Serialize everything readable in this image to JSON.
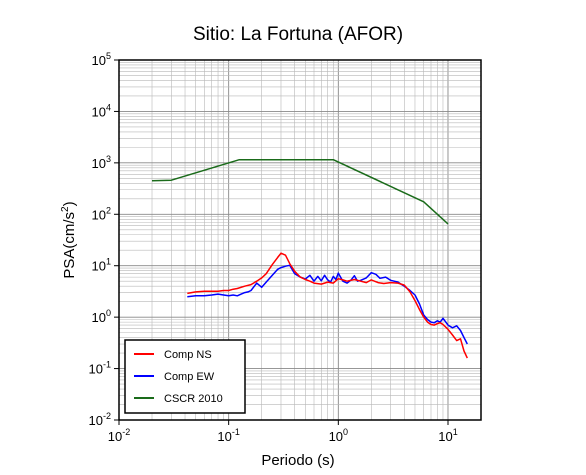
{
  "chart_data": {
    "type": "line",
    "title": "Sitio: La Fortuna (AFOR)",
    "xlabel": "Periodo (s)",
    "ylabel_main": "PSA(cm/s",
    "ylabel_sup": "2",
    "ylabel_end": ")",
    "xscale": "log",
    "yscale": "log",
    "xlim": [
      0.01,
      20
    ],
    "ylim": [
      0.01,
      100000
    ],
    "grid": true,
    "x_ticks": [
      {
        "base": "10",
        "exp": "-2",
        "value": 0.01
      },
      {
        "base": "10",
        "exp": "-1",
        "value": 0.1
      },
      {
        "base": "10",
        "exp": "0",
        "value": 1
      },
      {
        "base": "10",
        "exp": "1",
        "value": 10
      }
    ],
    "y_ticks": [
      {
        "base": "10",
        "exp": "-2",
        "value": 0.01
      },
      {
        "base": "10",
        "exp": "-1",
        "value": 0.1
      },
      {
        "base": "10",
        "exp": "0",
        "value": 1
      },
      {
        "base": "10",
        "exp": "1",
        "value": 10
      },
      {
        "base": "10",
        "exp": "2",
        "value": 100
      },
      {
        "base": "10",
        "exp": "3",
        "value": 1000
      },
      {
        "base": "10",
        "exp": "4",
        "value": 10000
      },
      {
        "base": "10",
        "exp": "5",
        "value": 100000
      }
    ],
    "legend_position": "bottom-left",
    "series": [
      {
        "name": "Comp NS",
        "color": "#ff0000",
        "x": [
          0.042,
          0.05,
          0.06,
          0.07,
          0.08,
          0.09,
          0.1,
          0.11,
          0.12,
          0.14,
          0.16,
          0.18,
          0.2,
          0.22,
          0.25,
          0.28,
          0.3,
          0.33,
          0.36,
          0.4,
          0.45,
          0.5,
          0.55,
          0.6,
          0.7,
          0.8,
          0.9,
          1.0,
          1.1,
          1.2,
          1.4,
          1.6,
          1.8,
          2.0,
          2.3,
          2.6,
          3.0,
          3.5,
          4.0,
          4.5,
          5.0,
          5.5,
          6.0,
          6.5,
          7.0,
          7.5,
          8.0,
          8.5,
          9.0,
          10.0,
          11.0,
          12.0,
          13.0,
          14.0,
          15.0
        ],
        "y": [
          2.9,
          3.1,
          3.2,
          3.2,
          3.2,
          3.3,
          3.3,
          3.5,
          3.6,
          4.0,
          4.3,
          5.0,
          5.8,
          7.0,
          10.5,
          14.5,
          17.5,
          16.0,
          11.0,
          7.8,
          6.0,
          5.4,
          5.0,
          4.6,
          4.4,
          4.8,
          4.6,
          5.6,
          5.3,
          5.0,
          5.4,
          5.0,
          4.7,
          5.3,
          4.7,
          4.5,
          4.7,
          4.6,
          4.2,
          3.1,
          2.1,
          1.4,
          1.0,
          0.8,
          0.72,
          0.7,
          0.75,
          0.78,
          0.72,
          0.58,
          0.45,
          0.35,
          0.38,
          0.22,
          0.16
        ]
      },
      {
        "name": "Comp EW",
        "color": "#0000ff",
        "x": [
          0.042,
          0.05,
          0.06,
          0.07,
          0.08,
          0.09,
          0.1,
          0.11,
          0.12,
          0.13,
          0.14,
          0.15,
          0.16,
          0.18,
          0.2,
          0.22,
          0.25,
          0.28,
          0.3,
          0.33,
          0.36,
          0.4,
          0.45,
          0.5,
          0.55,
          0.6,
          0.65,
          0.7,
          0.75,
          0.8,
          0.85,
          0.9,
          0.95,
          1.0,
          1.1,
          1.2,
          1.3,
          1.4,
          1.5,
          1.6,
          1.8,
          2.0,
          2.2,
          2.4,
          2.7,
          3.0,
          3.5,
          4.0,
          4.5,
          5.0,
          5.5,
          6.0,
          6.5,
          7.0,
          7.5,
          8.0,
          8.5,
          9.0,
          10.0,
          11.0,
          12.0,
          13.0,
          14.0,
          15.0
        ],
        "y": [
          2.5,
          2.6,
          2.6,
          2.7,
          2.8,
          2.7,
          2.6,
          2.7,
          2.6,
          2.8,
          3.0,
          3.1,
          3.3,
          4.6,
          3.8,
          4.8,
          6.5,
          8.5,
          9.2,
          9.8,
          10.2,
          7.0,
          6.0,
          5.5,
          6.5,
          5.0,
          6.2,
          5.1,
          6.5,
          5.3,
          4.8,
          6.2,
          5.4,
          7.2,
          5.0,
          4.6,
          5.2,
          6.4,
          5.0,
          5.2,
          5.8,
          7.3,
          6.8,
          5.7,
          6.0,
          5.2,
          4.8,
          4.0,
          3.3,
          2.7,
          1.8,
          1.1,
          0.9,
          0.8,
          0.78,
          0.85,
          0.8,
          0.95,
          0.7,
          0.62,
          0.68,
          0.55,
          0.4,
          0.3
        ]
      },
      {
        "name": "CSCR 2010",
        "color": "#1a6b1a",
        "x": [
          0.02,
          0.03,
          0.125,
          0.9,
          6.0,
          10.0
        ],
        "y": [
          450,
          460,
          1150,
          1150,
          175,
          65
        ]
      }
    ]
  }
}
